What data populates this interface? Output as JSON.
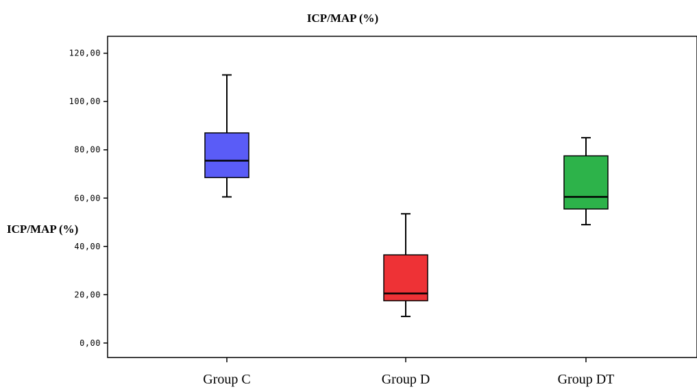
{
  "chart_data": {
    "type": "box",
    "title": "ICP/MAP (%)",
    "ylabel": "ICP/MAP (%)",
    "xlabel": "",
    "ylim": [
      -6,
      127
    ],
    "yticks": [
      0,
      20,
      40,
      60,
      80,
      100,
      120
    ],
    "ytick_labels": [
      "0,00",
      "20,00",
      "40,00",
      "60,00",
      "80,00",
      "100,00",
      "120,00"
    ],
    "categories": [
      "Group C",
      "Group D",
      "Group DT"
    ],
    "boxes": [
      {
        "category": "Group C",
        "min": 60.5,
        "q1": 68.5,
        "median": 75.5,
        "q3": 87,
        "max": 111,
        "color": "#5a5cf7"
      },
      {
        "category": "Group D",
        "min": 11,
        "q1": 17.5,
        "median": 20.5,
        "q3": 36.5,
        "max": 53.5,
        "color": "#ee3236"
      },
      {
        "category": "Group DT",
        "min": 49,
        "q1": 55.5,
        "median": 60.5,
        "q3": 77.5,
        "max": 85,
        "color": "#2db34a"
      }
    ],
    "grid": false,
    "legend": "none"
  }
}
